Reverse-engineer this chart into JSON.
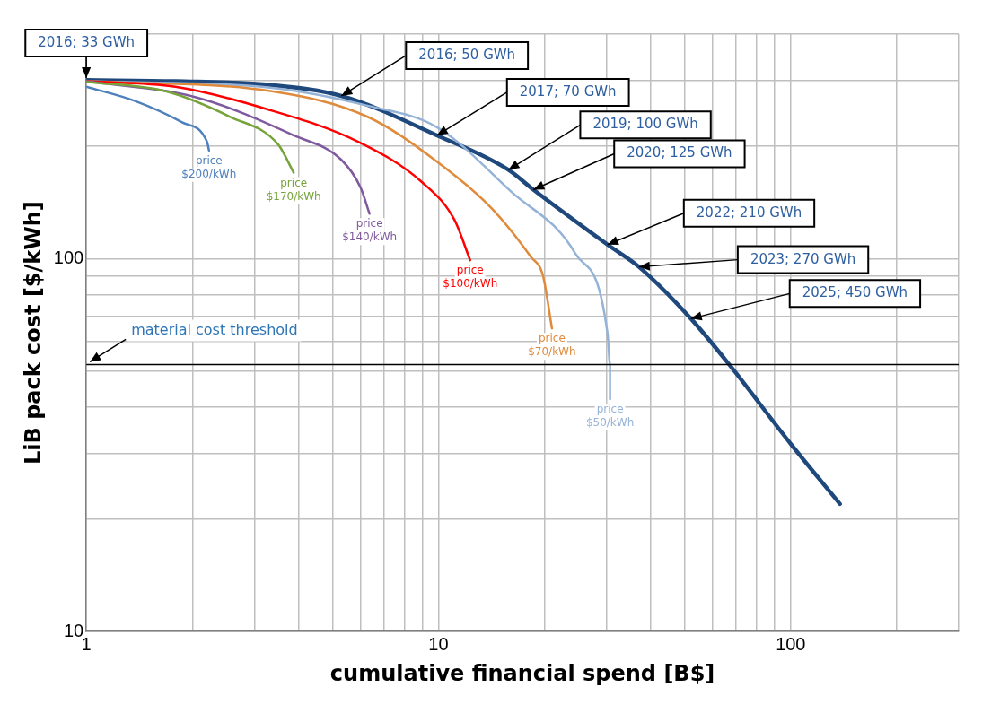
{
  "chart_data": {
    "type": "line",
    "xlabel": "cumulative financial spend [B$]",
    "ylabel": "LiB pack cost [$/kWh]",
    "log": "xy",
    "grid": true,
    "legend": false,
    "marker": "none",
    "xlim": [
      1,
      300
    ],
    "ylim": [
      10,
      400
    ],
    "xticks": [
      1,
      {
        "value": 2,
        "label": null
      },
      {
        "value": 3,
        "label": null
      },
      {
        "value": 4,
        "label": null
      },
      {
        "value": 5,
        "label": null
      },
      {
        "value": 6,
        "label": null
      },
      {
        "value": 7,
        "label": null
      },
      {
        "value": 8,
        "label": null
      },
      {
        "value": 9,
        "label": null
      },
      10,
      {
        "value": 20,
        "label": null
      },
      {
        "value": 30,
        "label": null
      },
      {
        "value": 40,
        "label": null
      },
      {
        "value": 50,
        "label": null
      },
      {
        "value": 60,
        "label": null
      },
      {
        "value": 70,
        "label": null
      },
      {
        "value": 80,
        "label": null
      },
      {
        "value": 90,
        "label": null
      },
      100,
      {
        "value": 200,
        "label": null
      },
      {
        "value": 300,
        "label": null
      }
    ],
    "yticks": [
      10,
      {
        "value": 20,
        "label": null
      },
      {
        "value": 30,
        "label": null
      },
      {
        "value": 40,
        "label": null
      },
      {
        "value": 50,
        "label": null
      },
      {
        "value": 60,
        "label": null
      },
      {
        "value": 70,
        "label": null
      },
      {
        "value": 80,
        "label": null
      },
      {
        "value": 90,
        "label": null
      },
      100,
      {
        "value": 200,
        "label": null
      },
      {
        "value": 300,
        "label": null
      },
      {
        "value": 400,
        "label": null
      }
    ],
    "series": [
      {
        "name": "price $200/kWh",
        "color": "#4f81bd",
        "x": [
          1,
          1.37,
          1.87,
          2.2,
          2.23
        ],
        "values": [
          289,
          265,
          232,
          206,
          195
        ]
      },
      {
        "name": "price $170/kWh",
        "color": "#77a33b",
        "x": [
          1,
          1.68,
          2.56,
          3.51,
          3.88
        ],
        "values": [
          298,
          281,
          240,
          202,
          170
        ]
      },
      {
        "name": "price $140/kWh",
        "color": "#7f5a9e",
        "x": [
          1,
          2.07,
          3.88,
          5.3,
          6.01,
          6.37
        ],
        "values": [
          299,
          270,
          214,
          184,
          155,
          132
        ]
      },
      {
        "name": "price $100/kWh",
        "color": "#ff0000",
        "x": [
          1,
          1.79,
          3.15,
          5.9,
          9,
          11.1,
          12.3
        ],
        "values": [
          299,
          289,
          254,
          206,
          160,
          127,
          99
        ]
      },
      {
        "name": "price $70/kWh",
        "color": "#e08b3c",
        "x": [
          1,
          3.36,
          6.29,
          9.9,
          14.2,
          18.3,
          19.8,
          21
        ],
        "values": [
          299,
          281,
          240,
          182,
          136,
          101,
          90,
          65
        ]
      },
      {
        "name": "price $50/kWh",
        "color": "#95b3d7",
        "x": [
          1,
          3.36,
          6.29,
          9.9,
          16.1,
          24.5,
          30.2,
          30.7,
          30.7
        ],
        "values": [
          299,
          287,
          257,
          225,
          151,
          103,
          63,
          52,
          42
        ]
      },
      {
        "color": "#1f497d",
        "x": [
          1,
          1.79,
          3.36,
          5.3,
          9.9,
          15.8,
          18.6,
          30.2,
          37.1,
          52.1,
          66.9,
          101,
          138
        ],
        "values": [
          301,
          299,
          292,
          273,
          214,
          173,
          153,
          109,
          95,
          69,
          52,
          31.5,
          22
        ]
      }
    ],
    "ref_lines": [
      {
        "axis": "y",
        "value": 52,
        "label": "material cost threshold",
        "color": "#000000"
      }
    ],
    "annotations": [
      {
        "text": "2016; 33 GWh",
        "x": 1,
        "y": 300
      },
      {
        "text": "2016; 50 GWh",
        "x": 5.3,
        "y": 273
      },
      {
        "text": "2017; 70 GWh",
        "x": 9.9,
        "y": 214
      },
      {
        "text": "2019; 100 GWh",
        "x": 15.8,
        "y": 173
      },
      {
        "text": "2020; 125 GWh",
        "x": 18.6,
        "y": 153
      },
      {
        "text": "2022; 210 GWh",
        "x": 30.2,
        "y": 109
      },
      {
        "text": "2023; 270 GWh",
        "x": 37.1,
        "y": 95
      },
      {
        "text": "2025; 450 GWh",
        "x": 52.1,
        "y": 69
      }
    ]
  }
}
